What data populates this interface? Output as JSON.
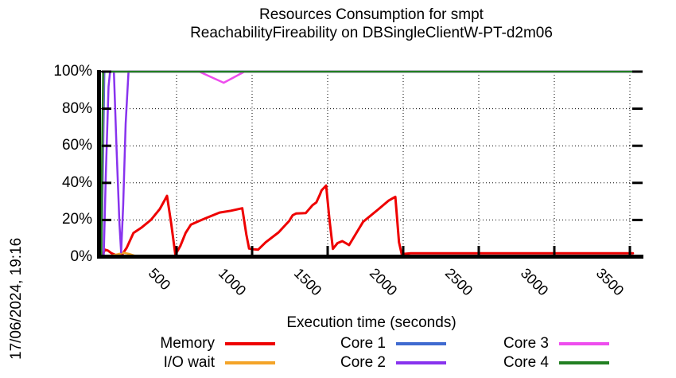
{
  "meta": {
    "timestamp_label": "17/06/2024, 19:16"
  },
  "chart_data": {
    "type": "line",
    "title_line1": "Resources Consumption for smpt",
    "title_line2": "ReachabilityFireability on DBSingleClientW-PT-d2m06",
    "xlabel": "Execution time (seconds)",
    "x_range": [
      0,
      3584
    ],
    "y_range": [
      0,
      100
    ],
    "x_ticks": [
      500,
      1000,
      1500,
      2000,
      2500,
      3000,
      3500
    ],
    "y_ticks": [
      0,
      20,
      40,
      60,
      80,
      100
    ],
    "y_tick_suffix": "%",
    "grid": true,
    "legend_position": "bottom",
    "axis_color": "#000000",
    "series": [
      {
        "name": "Memory",
        "color": "#ee0000",
        "points": [
          [
            0,
            0
          ],
          [
            10,
            1
          ],
          [
            25,
            4
          ],
          [
            45,
            3.5
          ],
          [
            70,
            2
          ],
          [
            100,
            1
          ],
          [
            135,
            0.8
          ],
          [
            170,
            5
          ],
          [
            215,
            13
          ],
          [
            270,
            16
          ],
          [
            330,
            20
          ],
          [
            390,
            26
          ],
          [
            437,
            33
          ],
          [
            465,
            18
          ],
          [
            492,
            1.2
          ],
          [
            525,
            6
          ],
          [
            560,
            13
          ],
          [
            595,
            17.5
          ],
          [
            650,
            19.5
          ],
          [
            710,
            21.5
          ],
          [
            785,
            24
          ],
          [
            860,
            25
          ],
          [
            935,
            26.3
          ],
          [
            962,
            12
          ],
          [
            980,
            4.6
          ],
          [
            1010,
            4.2
          ],
          [
            1040,
            4
          ],
          [
            1090,
            8
          ],
          [
            1175,
            13.3
          ],
          [
            1245,
            19.5
          ],
          [
            1268,
            22.5
          ],
          [
            1292,
            23.5
          ],
          [
            1355,
            23.7
          ],
          [
            1400,
            28
          ],
          [
            1425,
            29.5
          ],
          [
            1448,
            33.5
          ],
          [
            1460,
            36
          ],
          [
            1490,
            38.6
          ],
          [
            1512,
            20
          ],
          [
            1535,
            4.4
          ],
          [
            1565,
            7.5
          ],
          [
            1597,
            8.6
          ],
          [
            1642,
            6.5
          ],
          [
            1705,
            15
          ],
          [
            1735,
            19
          ],
          [
            1835,
            25.7
          ],
          [
            1905,
            30.5
          ],
          [
            1948,
            32.5
          ],
          [
            1972,
            8
          ],
          [
            1990,
            1.6
          ],
          [
            2050,
            2
          ],
          [
            3520,
            2
          ]
        ]
      },
      {
        "name": "I/O wait",
        "color": "#f4a428",
        "points": [
          [
            0,
            0.3
          ],
          [
            60,
            0.6
          ],
          [
            110,
            1.5
          ],
          [
            150,
            2.3
          ],
          [
            185,
            1.7
          ],
          [
            225,
            0.7
          ],
          [
            275,
            0.2
          ],
          [
            3520,
            0.2
          ]
        ]
      },
      {
        "name": "Core 1",
        "color": "#3f6ad0",
        "points": [
          [
            4,
            0
          ],
          [
            12,
            45
          ],
          [
            22,
            100
          ],
          [
            3520,
            100
          ]
        ]
      },
      {
        "name": "Core 2",
        "color": "#8833ee",
        "points": [
          [
            18,
            0
          ],
          [
            32,
            45
          ],
          [
            50,
            92
          ],
          [
            60,
            100
          ],
          [
            85,
            100
          ],
          [
            103,
            58
          ],
          [
            122,
            18
          ],
          [
            133,
            2.5
          ],
          [
            147,
            28
          ],
          [
            163,
            72
          ],
          [
            182,
            100
          ],
          [
            3520,
            100
          ]
        ]
      },
      {
        "name": "Core 3",
        "color": "#ee4dee",
        "points": [
          [
            3,
            0
          ],
          [
            10,
            55
          ],
          [
            17,
            100
          ],
          [
            650,
            100
          ],
          [
            812,
            94
          ],
          [
            950,
            100
          ],
          [
            3520,
            100
          ]
        ]
      },
      {
        "name": "Core 4",
        "color": "#228022",
        "points": [
          [
            2,
            0
          ],
          [
            8,
            60
          ],
          [
            14,
            100
          ],
          [
            3520,
            100
          ]
        ]
      }
    ]
  }
}
